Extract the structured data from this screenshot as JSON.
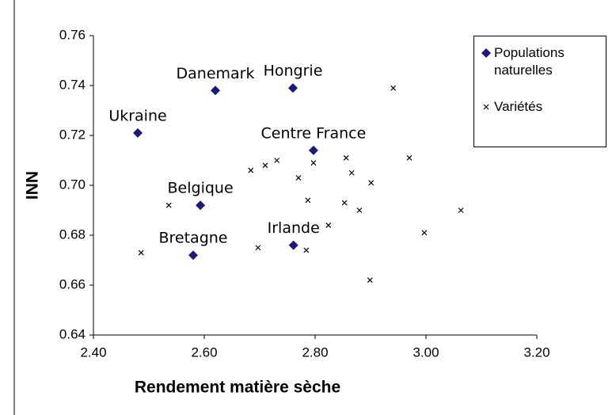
{
  "chart_data": {
    "type": "scatter",
    "xlabel": "Rendement matière sèche",
    "ylabel": "INN",
    "xlim": [
      2.4,
      3.2
    ],
    "xticks": [
      {
        "value": 2.4,
        "label": "2.40"
      },
      {
        "value": 2.6,
        "label": "2.60"
      },
      {
        "value": 2.8,
        "label": "2.80"
      },
      {
        "value": 3.0,
        "label": "3.00"
      },
      {
        "value": 3.2,
        "label": "3.20"
      }
    ],
    "ylim": [
      0.64,
      0.76
    ],
    "yticks": [
      0.64,
      0.66,
      0.68,
      {
        "value": 0.7,
        "label": "0.70"
      },
      0.72,
      0.74,
      0.76
    ],
    "grid": false,
    "legend": "top-right",
    "series": [
      {
        "name": "Populations naturelles",
        "color": "#1a1a7a",
        "marker": "diamond",
        "labels": [
          "Ukraine",
          "Danemark",
          "Hongrie",
          "Centre France",
          "Belgique",
          "Bretagne",
          "Irlande"
        ],
        "x": [
          2.48,
          2.62,
          2.76,
          2.797,
          2.593,
          2.58,
          2.761
        ],
        "values": [
          0.721,
          0.738,
          0.739,
          0.714,
          0.692,
          0.672,
          0.676
        ]
      },
      {
        "name": "Variétés",
        "color": "#000000",
        "marker": "x",
        "x": [
          2.486,
          2.536,
          2.684,
          2.71,
          2.731,
          2.77,
          2.787,
          2.797,
          2.697,
          2.784,
          2.824,
          2.856,
          2.866,
          2.853,
          2.88,
          2.901,
          2.899,
          2.941,
          2.97,
          2.997,
          3.063
        ],
        "values": [
          0.673,
          0.692,
          0.706,
          0.708,
          0.71,
          0.703,
          0.694,
          0.709,
          0.675,
          0.674,
          0.684,
          0.711,
          0.705,
          0.693,
          0.69,
          0.701,
          0.662,
          0.739,
          0.711,
          0.681,
          0.69
        ]
      }
    ]
  }
}
